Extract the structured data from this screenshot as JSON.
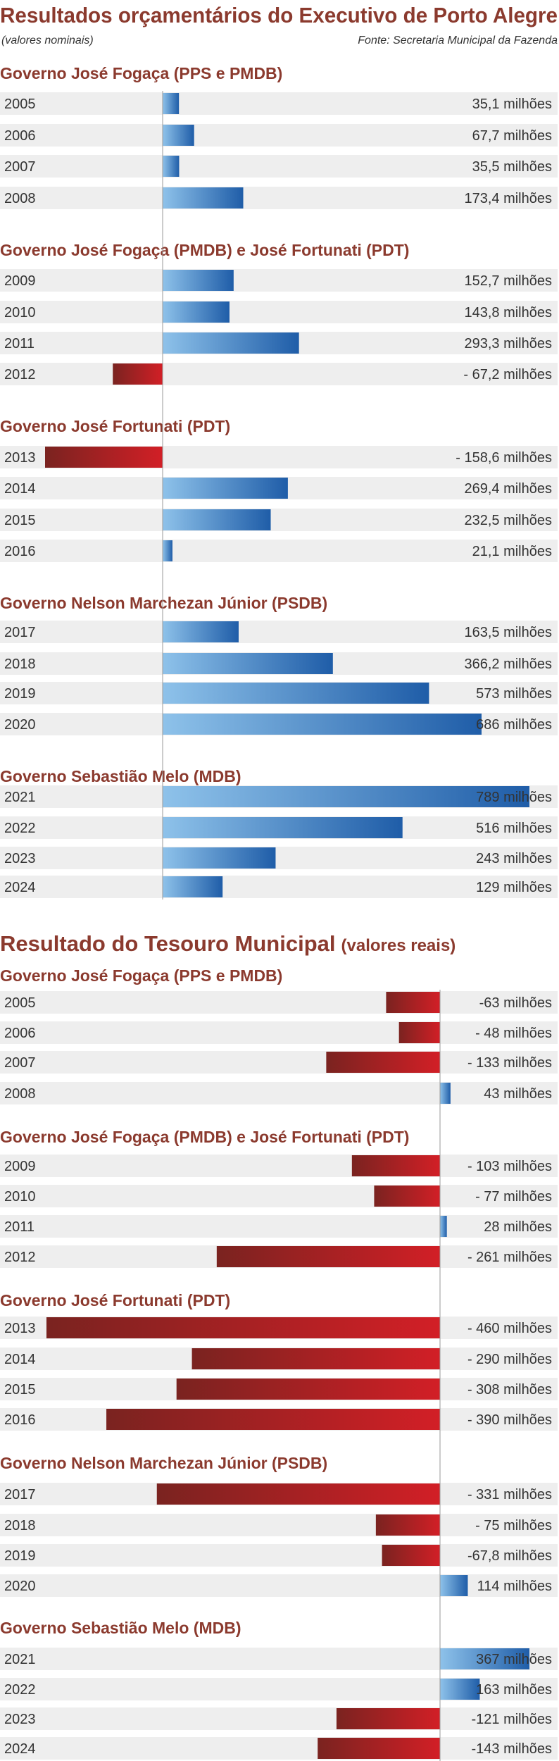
{
  "colors": {
    "title": "#8b3a2e",
    "row_bg": "#eeeeee",
    "text": "#333333",
    "blue_light": "#8ec2ea",
    "blue_dark": "#1f5da8",
    "red_dark": "#7a2320",
    "red_bright": "#d21f26",
    "axis": "#999999"
  },
  "chart_data": [
    {
      "type": "bar",
      "orientation": "horizontal",
      "title": "Resultados orçamentários do Executivo de Porto Alegre",
      "subtitle": "(valores nominais)",
      "source": "Fonte: Secretaria Municipal da Fazenda",
      "unit": "milhões",
      "xlim": [
        -158.6,
        789
      ],
      "groups": [
        {
          "name": "Governo José Fogaça (PPS e PMDB)",
          "rows": [
            {
              "year": "2005",
              "value": 35.1,
              "label": "35,1 milhões"
            },
            {
              "year": "2006",
              "value": 67.7,
              "label": "67,7 milhões"
            },
            {
              "year": "2007",
              "value": 35.5,
              "label": "35,5 milhões"
            },
            {
              "year": "2008",
              "value": 173.4,
              "label": "173,4 milhões"
            }
          ]
        },
        {
          "name": "Governo José Fogaça (PMDB) e José Fortunati (PDT)",
          "rows": [
            {
              "year": "2009",
              "value": 152.7,
              "label": "152,7 milhões"
            },
            {
              "year": "2010",
              "value": 143.8,
              "label": "143,8 milhões"
            },
            {
              "year": "2011",
              "value": 293.3,
              "label": "293,3 milhões"
            },
            {
              "year": "2012",
              "value": -67.2,
              "label": "- 67,2 milhões"
            }
          ]
        },
        {
          "name": "Governo José Fortunati (PDT)",
          "rows": [
            {
              "year": "2013",
              "value": -158.6,
              "label": "- 158,6 milhões"
            },
            {
              "year": "2014",
              "value": 269.4,
              "label": "269,4 milhões"
            },
            {
              "year": "2015",
              "value": 232.5,
              "label": "232,5 milhões"
            },
            {
              "year": "2016",
              "value": 21.1,
              "label": "21,1 milhões"
            }
          ]
        },
        {
          "name": "Governo Nelson Marchezan Júnior (PSDB)",
          "rows": [
            {
              "year": "2017",
              "value": 163.5,
              "label": "163,5 milhões"
            },
            {
              "year": "2018",
              "value": 366.2,
              "label": "366,2 milhões"
            },
            {
              "year": "2019",
              "value": 573,
              "label": "573 milhões"
            },
            {
              "year": "2020",
              "value": 686,
              "label": "686 milhões"
            }
          ]
        },
        {
          "name": "Governo Sebastião Melo (MDB)",
          "rows": [
            {
              "year": "2021",
              "value": 789,
              "label": "789 milhões"
            },
            {
              "year": "2022",
              "value": 516,
              "label": "516 milhões"
            },
            {
              "year": "2023",
              "value": 243,
              "label": "243 milhões"
            },
            {
              "year": "2024",
              "value": 129,
              "label": "129 milhões"
            }
          ]
        }
      ]
    },
    {
      "type": "bar",
      "orientation": "horizontal",
      "title": "Resultado do Tesouro Municipal",
      "title_suffix": "(valores reais)",
      "unit": "milhões",
      "xlim": [
        -460,
        367
      ],
      "groups": [
        {
          "name": "Governo José Fogaça (PPS e PMDB)",
          "rows": [
            {
              "year": "2005",
              "value": -63,
              "label": "-63 milhões"
            },
            {
              "year": "2006",
              "value": -48,
              "label": "- 48 milhões"
            },
            {
              "year": "2007",
              "value": -133,
              "label": "- 133 milhões"
            },
            {
              "year": "2008",
              "value": 43,
              "label": "43 milhões"
            }
          ]
        },
        {
          "name": "Governo José Fogaça (PMDB) e José Fortunati (PDT)",
          "rows": [
            {
              "year": "2009",
              "value": -103,
              "label": "- 103 milhões"
            },
            {
              "year": "2010",
              "value": -77,
              "label": "- 77 milhões"
            },
            {
              "year": "2011",
              "value": 28,
              "label": "28 milhões"
            },
            {
              "year": "2012",
              "value": -261,
              "label": "- 261 milhões"
            }
          ]
        },
        {
          "name": "Governo José Fortunati (PDT)",
          "rows": [
            {
              "year": "2013",
              "value": -460,
              "label": "- 460 milhões"
            },
            {
              "year": "2014",
              "value": -290,
              "label": "- 290 milhões"
            },
            {
              "year": "2015",
              "value": -308,
              "label": "- 308 milhões"
            },
            {
              "year": "2016",
              "value": -390,
              "label": "- 390 milhões"
            }
          ]
        },
        {
          "name": "Governo Nelson Marchezan Júnior (PSDB)",
          "rows": [
            {
              "year": "2017",
              "value": -331,
              "label": "- 331 milhões"
            },
            {
              "year": "2018",
              "value": -75,
              "label": "- 75 milhões"
            },
            {
              "year": "2019",
              "value": -67.8,
              "label": "-67,8 milhões"
            },
            {
              "year": "2020",
              "value": 114,
              "label": "114 milhões"
            }
          ]
        },
        {
          "name": "Governo Sebastião Melo (MDB)",
          "rows": [
            {
              "year": "2021",
              "value": 367,
              "label": "367 milhões"
            },
            {
              "year": "2022",
              "value": 163,
              "label": "163 milhões"
            },
            {
              "year": "2023",
              "value": -121,
              "label": "-121 milhões"
            },
            {
              "year": "2024",
              "value": -143,
              "label": "-143 milhões"
            }
          ]
        }
      ]
    }
  ]
}
